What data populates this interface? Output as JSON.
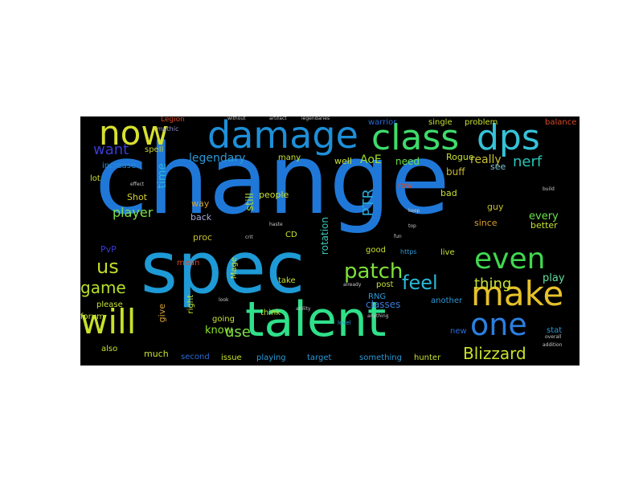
{
  "figure": {
    "background": "#000000",
    "words": [
      {
        "text": "change",
        "color": "#1f78d8"
      },
      {
        "text": "spec",
        "color": "#1e9ad6"
      },
      {
        "text": "talent",
        "color": "#2fe08a"
      },
      {
        "text": "damage",
        "color": "#1e8fd8"
      },
      {
        "text": "class",
        "color": "#3ddc6a"
      },
      {
        "text": "dps",
        "color": "#35c3d8"
      },
      {
        "text": "now",
        "color": "#d7e02e"
      },
      {
        "text": "will",
        "color": "#c7e02a"
      },
      {
        "text": "make",
        "color": "#e6c22a"
      },
      {
        "text": "one",
        "color": "#2b7fe0"
      },
      {
        "text": "even",
        "color": "#40d850"
      },
      {
        "text": "patch",
        "color": "#7ee03a"
      },
      {
        "text": "feel",
        "color": "#2ab8d8"
      },
      {
        "text": "want",
        "color": "#3a3ad6"
      },
      {
        "text": "Blizzard",
        "color": "#c8e02a"
      },
      {
        "text": "us",
        "color": "#c4dc2a"
      },
      {
        "text": "game",
        "color": "#b6e02a"
      },
      {
        "text": "player",
        "color": "#7be04a"
      },
      {
        "text": "nerf",
        "color": "#28c4b8"
      },
      {
        "text": "time",
        "color": "#28b4d8"
      },
      {
        "text": "thing",
        "color": "#c8e030"
      },
      {
        "text": "PTR",
        "color": "#2aa8dc"
      },
      {
        "text": "use",
        "color": "#7ee04a"
      },
      {
        "text": "legendary",
        "color": "#2a9ad8"
      },
      {
        "text": "AoE",
        "color": "#a0e02a"
      },
      {
        "text": "really",
        "color": "#c8c030"
      },
      {
        "text": "every",
        "color": "#6ae04a"
      },
      {
        "text": "play",
        "color": "#5fe0a0"
      },
      {
        "text": "classes",
        "color": "#3a7ad6"
      },
      {
        "text": "know",
        "color": "#8ae02a"
      },
      {
        "text": "still",
        "color": "#a8d838"
      },
      {
        "text": "rotation",
        "color": "#38c8b8"
      },
      {
        "text": "need",
        "color": "#6ae04a"
      },
      {
        "text": "buff",
        "color": "#c8b830"
      },
      {
        "text": "spell",
        "color": "#c8d030"
      },
      {
        "text": "warrior",
        "color": "#2a6ad6"
      },
      {
        "text": "single",
        "color": "#c8e030"
      },
      {
        "text": "problem",
        "color": "#c8e030"
      },
      {
        "text": "balance",
        "color": "#d84a28"
      },
      {
        "text": "increase",
        "color": "#2a8ad8"
      },
      {
        "text": "lot",
        "color": "#c8e030"
      },
      {
        "text": "Legion",
        "color": "#d84a28"
      },
      {
        "text": "mythic",
        "color": "#9090d0"
      },
      {
        "text": "Shot",
        "color": "#d8d030"
      },
      {
        "text": "way",
        "color": "#d8a030"
      },
      {
        "text": "back",
        "color": "#a8a8d8"
      },
      {
        "text": "proc",
        "color": "#c8c030"
      },
      {
        "text": "people",
        "color": "#c8e030"
      },
      {
        "text": "Rogue",
        "color": "#c8e030"
      },
      {
        "text": "well",
        "color": "#c8e030"
      },
      {
        "text": "see",
        "color": "#7ec8d8"
      },
      {
        "text": "bad",
        "color": "#c8e030"
      },
      {
        "text": "guy",
        "color": "#c8c030"
      },
      {
        "text": "since",
        "color": "#d8a030"
      },
      {
        "text": "better",
        "color": "#c8e030"
      },
      {
        "text": "PvP",
        "color": "#3a3ad6"
      },
      {
        "text": "CD",
        "color": "#c8e030"
      },
      {
        "text": "mean",
        "color": "#d84a28"
      },
      {
        "text": "Mage",
        "color": "#c8e030"
      },
      {
        "text": "live",
        "color": "#c8e030"
      },
      {
        "text": "good",
        "color": "#c8e030"
      },
      {
        "text": "take",
        "color": "#c8e030"
      },
      {
        "text": "post",
        "color": "#c8e030"
      },
      {
        "text": "RNG",
        "color": "#2a9ad8"
      },
      {
        "text": "another",
        "color": "#2a9ad8"
      },
      {
        "text": "please",
        "color": "#c8e030"
      },
      {
        "text": "going",
        "color": "#c8e030"
      },
      {
        "text": "think",
        "color": "#c8e030"
      },
      {
        "text": "forum",
        "color": "#c8e030"
      },
      {
        "text": "give",
        "color": "#d8a030"
      },
      {
        "text": "right",
        "color": "#c8e030"
      },
      {
        "text": "stat",
        "color": "#2a9ad8"
      },
      {
        "text": "new",
        "color": "#2a6ad6"
      },
      {
        "text": "also",
        "color": "#c8e030"
      },
      {
        "text": "much",
        "color": "#c8e030"
      },
      {
        "text": "second",
        "color": "#2a6ad6"
      },
      {
        "text": "issue",
        "color": "#c8e030"
      },
      {
        "text": "playing",
        "color": "#2a9ad8"
      },
      {
        "text": "target",
        "color": "#2a9ad8"
      },
      {
        "text": "something",
        "color": "#2a9ad8"
      },
      {
        "text": "hunter",
        "color": "#c8e030"
      },
      {
        "text": "many",
        "color": "#c8e030"
      },
      {
        "text": "row",
        "color": "#d84a28"
      },
      {
        "text": "https",
        "color": "#2a9ad8"
      },
      {
        "text": "without",
        "color": "#c8c8c8"
      },
      {
        "text": "artifact",
        "color": "#c8c8c8"
      },
      {
        "text": "legendaries",
        "color": "#c8c8c8"
      },
      {
        "text": "effect",
        "color": "#c8c8c8"
      },
      {
        "text": "build",
        "color": "#c8c8c8"
      },
      {
        "text": "haste",
        "color": "#c8c8c8"
      },
      {
        "text": "crit",
        "color": "#c8c8c8"
      },
      {
        "text": "look",
        "color": "#c8c8c8"
      },
      {
        "text": "level",
        "color": "#2a9ad8"
      },
      {
        "text": "ability",
        "color": "#c8c8c8"
      },
      {
        "text": "already",
        "color": "#c8c8c8"
      },
      {
        "text": "keep",
        "color": "#c8c8c8"
      },
      {
        "text": "top",
        "color": "#c8c8c8"
      },
      {
        "text": "fun",
        "color": "#c8c8c8"
      },
      {
        "text": "overall",
        "color": "#c8c8c8"
      },
      {
        "text": "addition",
        "color": "#c8c8c8"
      },
      {
        "text": "anything",
        "color": "#c8c8c8"
      }
    ]
  }
}
